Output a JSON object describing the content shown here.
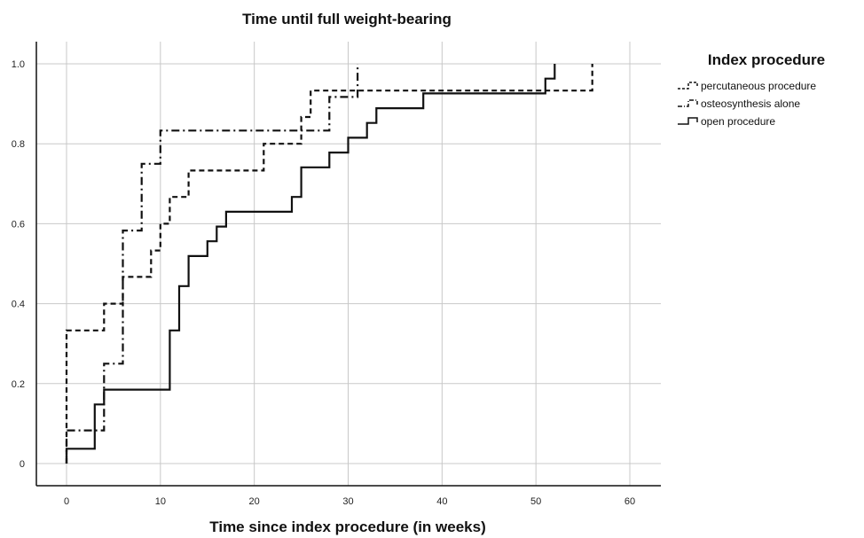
{
  "chart_data": {
    "type": "line",
    "title": "Time until full weight-bearing",
    "xlabel": "Time since index procedure (in weeks)",
    "ylabel": "",
    "xlim": [
      -3,
      63
    ],
    "ylim": [
      -0.06,
      1.05
    ],
    "xticks": [
      0,
      10,
      20,
      30,
      40,
      50,
      60
    ],
    "xtick_labels": [
      "0",
      "10",
      "20",
      "30",
      "40",
      "50",
      "60"
    ],
    "yticks": [
      0,
      0.2,
      0.4,
      0.6,
      0.8,
      1.0
    ],
    "ytick_labels": [
      "0",
      "0.2",
      "0.4",
      "0.6",
      "0.8",
      "1.0"
    ],
    "grid": true,
    "step": true,
    "legend": {
      "title": "Index procedure",
      "placement": "top-right"
    },
    "series": [
      {
        "name": "percutaneous procedure",
        "style": "dashed",
        "color": "#111111",
        "points": [
          [
            0,
            0
          ],
          [
            0,
            0.333
          ],
          [
            4,
            0.333
          ],
          [
            4,
            0.4
          ],
          [
            6,
            0.4
          ],
          [
            6,
            0.467
          ],
          [
            9,
            0.467
          ],
          [
            9,
            0.533
          ],
          [
            10,
            0.533
          ],
          [
            10,
            0.6
          ],
          [
            11,
            0.6
          ],
          [
            11,
            0.667
          ],
          [
            13,
            0.667
          ],
          [
            13,
            0.733
          ],
          [
            21,
            0.733
          ],
          [
            21,
            0.8
          ],
          [
            25,
            0.8
          ],
          [
            25,
            0.867
          ],
          [
            26,
            0.867
          ],
          [
            26,
            0.933
          ],
          [
            56,
            0.933
          ],
          [
            56,
            1.0
          ]
        ]
      },
      {
        "name": "osteosynthesis alone",
        "style": "dashdot",
        "color": "#111111",
        "points": [
          [
            0,
            0
          ],
          [
            0,
            0.083
          ],
          [
            4,
            0.083
          ],
          [
            4,
            0.25
          ],
          [
            6,
            0.25
          ],
          [
            6,
            0.583
          ],
          [
            8,
            0.583
          ],
          [
            8,
            0.75
          ],
          [
            10,
            0.75
          ],
          [
            10,
            0.833
          ],
          [
            28,
            0.833
          ],
          [
            28,
            0.917
          ],
          [
            31,
            0.917
          ],
          [
            31,
            1.0
          ]
        ]
      },
      {
        "name": "open procedure",
        "style": "solid",
        "color": "#111111",
        "points": [
          [
            0,
            0
          ],
          [
            0,
            0.037
          ],
          [
            3,
            0.037
          ],
          [
            3,
            0.148
          ],
          [
            4,
            0.148
          ],
          [
            4,
            0.185
          ],
          [
            11,
            0.185
          ],
          [
            11,
            0.333
          ],
          [
            12,
            0.333
          ],
          [
            12,
            0.444
          ],
          [
            13,
            0.444
          ],
          [
            13,
            0.519
          ],
          [
            15,
            0.519
          ],
          [
            15,
            0.556
          ],
          [
            16,
            0.556
          ],
          [
            16,
            0.593
          ],
          [
            17,
            0.593
          ],
          [
            17,
            0.63
          ],
          [
            24,
            0.63
          ],
          [
            24,
            0.667
          ],
          [
            25,
            0.667
          ],
          [
            25,
            0.741
          ],
          [
            28,
            0.741
          ],
          [
            28,
            0.778
          ],
          [
            30,
            0.778
          ],
          [
            30,
            0.815
          ],
          [
            32,
            0.815
          ],
          [
            32,
            0.852
          ],
          [
            33,
            0.852
          ],
          [
            33,
            0.889
          ],
          [
            38,
            0.889
          ],
          [
            38,
            0.926
          ],
          [
            51,
            0.926
          ],
          [
            51,
            0.963
          ],
          [
            52,
            0.963
          ],
          [
            52,
            1.0
          ]
        ]
      }
    ]
  }
}
